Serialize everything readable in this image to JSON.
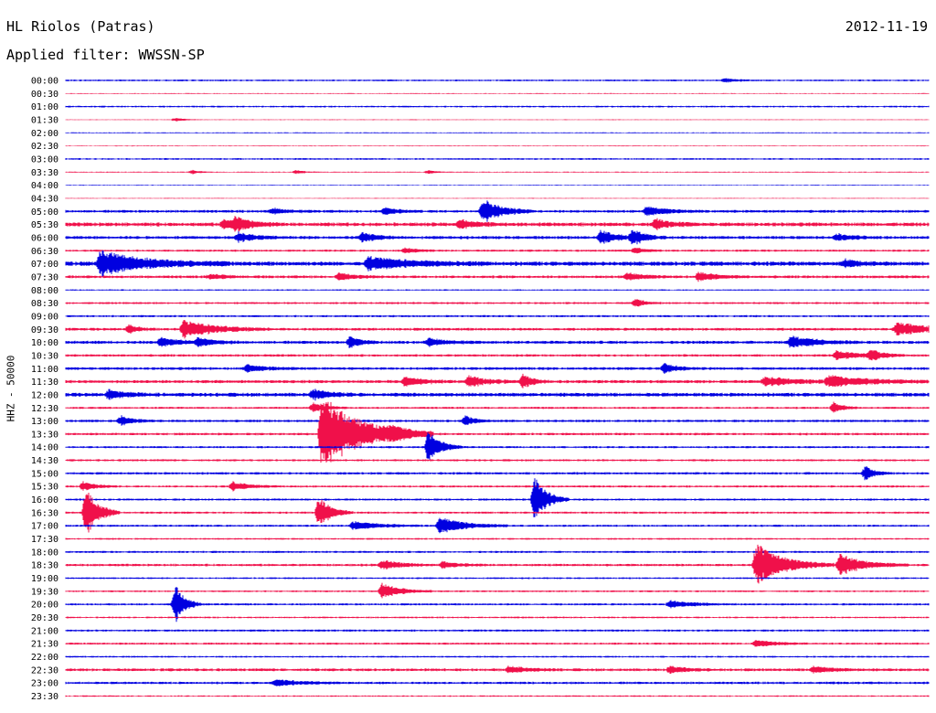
{
  "header": {
    "station": "HL Riolos (Patras)",
    "filter": "Applied filter: WWSSN-SP",
    "date": "2012-11-19"
  },
  "colors": {
    "blue": "#0000e0",
    "red": "#f0104a",
    "text": "#000000"
  },
  "chart_data": {
    "type": "line",
    "ylabel": "HHZ - 50000",
    "rows": [
      "00:00",
      "00:30",
      "01:00",
      "01:30",
      "02:00",
      "02:30",
      "03:00",
      "03:30",
      "04:00",
      "04:30",
      "05:00",
      "05:30",
      "06:00",
      "06:30",
      "07:00",
      "07:30",
      "08:00",
      "08:30",
      "09:00",
      "09:30",
      "10:00",
      "10:30",
      "11:00",
      "11:30",
      "12:00",
      "12:30",
      "13:00",
      "13:30",
      "14:00",
      "14:30",
      "15:00",
      "15:30",
      "16:00",
      "16:30",
      "17:00",
      "17:30",
      "18:00",
      "18:30",
      "19:00",
      "19:30",
      "20:00",
      "20:30",
      "21:00",
      "21:30",
      "22:00",
      "22:30",
      "23:00",
      "23:30"
    ],
    "row_colors": [
      "blue",
      "red"
    ],
    "row_noise": [
      1,
      0.5,
      1,
      0.5,
      0.6,
      0.5,
      1,
      0.6,
      0.5,
      0.5,
      1.6,
      2.2,
      1.8,
      1.2,
      2.5,
      1.6,
      0.8,
      1.2,
      1.2,
      1.6,
      1.8,
      1.4,
      1.6,
      1.8,
      2.2,
      1.2,
      1.4,
      1.4,
      1.2,
      1.2,
      1.4,
      1.2,
      1.2,
      1.2,
      1.2,
      1,
      1.2,
      1.4,
      1,
      1,
      1.2,
      1,
      1.2,
      1.2,
      1,
      1.6,
      1.4,
      0.8
    ],
    "x_range_minutes": [
      0,
      30
    ],
    "events": [
      {
        "row": 0,
        "t": 22.9,
        "amp": 2,
        "dur": 0.4
      },
      {
        "row": 3,
        "t": 3.8,
        "amp": 2,
        "dur": 0.3
      },
      {
        "row": 7,
        "t": 4.4,
        "amp": 2,
        "dur": 0.3
      },
      {
        "row": 7,
        "t": 8.0,
        "amp": 2,
        "dur": 0.3
      },
      {
        "row": 7,
        "t": 12.6,
        "amp": 2,
        "dur": 0.3
      },
      {
        "row": 10,
        "t": 7.2,
        "amp": 3,
        "dur": 0.5
      },
      {
        "row": 10,
        "t": 11.1,
        "amp": 4,
        "dur": 0.4
      },
      {
        "row": 10,
        "t": 14.5,
        "amp": 14,
        "dur": 0.6
      },
      {
        "row": 10,
        "t": 20.2,
        "amp": 5,
        "dur": 0.7
      },
      {
        "row": 11,
        "t": 5.5,
        "amp": 5,
        "dur": 0.5
      },
      {
        "row": 11,
        "t": 5.9,
        "amp": 7,
        "dur": 0.5
      },
      {
        "row": 11,
        "t": 13.7,
        "amp": 5,
        "dur": 0.5
      },
      {
        "row": 11,
        "t": 20.5,
        "amp": 6,
        "dur": 0.5
      },
      {
        "row": 12,
        "t": 6.0,
        "amp": 6,
        "dur": 0.5
      },
      {
        "row": 12,
        "t": 10.3,
        "amp": 5,
        "dur": 0.5
      },
      {
        "row": 12,
        "t": 18.6,
        "amp": 8,
        "dur": 0.5
      },
      {
        "row": 12,
        "t": 19.7,
        "amp": 9,
        "dur": 0.4
      },
      {
        "row": 12,
        "t": 26.8,
        "amp": 4,
        "dur": 0.5
      },
      {
        "row": 13,
        "t": 11.8,
        "amp": 3,
        "dur": 0.4
      },
      {
        "row": 13,
        "t": 19.8,
        "amp": 4,
        "dur": 0.3
      },
      {
        "row": 14,
        "t": 1.2,
        "amp": 14,
        "dur": 1.5
      },
      {
        "row": 14,
        "t": 10.5,
        "amp": 7,
        "dur": 1.4
      },
      {
        "row": 14,
        "t": 27.1,
        "amp": 4,
        "dur": 0.5
      },
      {
        "row": 15,
        "t": 5.0,
        "amp": 3,
        "dur": 0.5
      },
      {
        "row": 15,
        "t": 9.5,
        "amp": 4,
        "dur": 0.5
      },
      {
        "row": 15,
        "t": 19.5,
        "amp": 4,
        "dur": 0.6
      },
      {
        "row": 15,
        "t": 22.0,
        "amp": 5,
        "dur": 0.6
      },
      {
        "row": 17,
        "t": 19.8,
        "amp": 5,
        "dur": 0.3
      },
      {
        "row": 19,
        "t": 2.2,
        "amp": 5,
        "dur": 0.3
      },
      {
        "row": 19,
        "t": 4.1,
        "amp": 10,
        "dur": 1.0
      },
      {
        "row": 19,
        "t": 28.9,
        "amp": 7,
        "dur": 1.2
      },
      {
        "row": 20,
        "t": 3.3,
        "amp": 5,
        "dur": 0.6
      },
      {
        "row": 20,
        "t": 4.6,
        "amp": 5,
        "dur": 0.5
      },
      {
        "row": 20,
        "t": 9.9,
        "amp": 8,
        "dur": 0.3
      },
      {
        "row": 20,
        "t": 12.6,
        "amp": 4,
        "dur": 0.6
      },
      {
        "row": 20,
        "t": 25.2,
        "amp": 7,
        "dur": 0.8
      },
      {
        "row": 21,
        "t": 26.8,
        "amp": 5,
        "dur": 0.8
      },
      {
        "row": 21,
        "t": 28.0,
        "amp": 6,
        "dur": 0.4
      },
      {
        "row": 22,
        "t": 6.3,
        "amp": 4,
        "dur": 0.6
      },
      {
        "row": 22,
        "t": 20.8,
        "amp": 6,
        "dur": 0.4
      },
      {
        "row": 23,
        "t": 11.8,
        "amp": 5,
        "dur": 0.6
      },
      {
        "row": 23,
        "t": 14.0,
        "amp": 6,
        "dur": 0.6
      },
      {
        "row": 23,
        "t": 15.9,
        "amp": 9,
        "dur": 0.3
      },
      {
        "row": 23,
        "t": 24.3,
        "amp": 5,
        "dur": 1.0
      },
      {
        "row": 23,
        "t": 26.5,
        "amp": 6,
        "dur": 1.4
      },
      {
        "row": 24,
        "t": 1.5,
        "amp": 5,
        "dur": 0.6
      },
      {
        "row": 24,
        "t": 8.6,
        "amp": 6,
        "dur": 0.5
      },
      {
        "row": 25,
        "t": 8.6,
        "amp": 6,
        "dur": 0.4
      },
      {
        "row": 25,
        "t": 26.7,
        "amp": 7,
        "dur": 0.3
      },
      {
        "row": 26,
        "t": 1.9,
        "amp": 6,
        "dur": 0.4
      },
      {
        "row": 26,
        "t": 13.9,
        "amp": 6,
        "dur": 0.3
      },
      {
        "row": 27,
        "t": 8.9,
        "amp": 44,
        "dur": 1.3
      },
      {
        "row": 27,
        "t": 11.3,
        "amp": 5,
        "dur": 0.4
      },
      {
        "row": 28,
        "t": 12.6,
        "amp": 19,
        "dur": 0.4
      },
      {
        "row": 30,
        "t": 27.8,
        "amp": 8,
        "dur": 0.3
      },
      {
        "row": 31,
        "t": 0.6,
        "amp": 5,
        "dur": 0.4
      },
      {
        "row": 31,
        "t": 5.8,
        "amp": 5,
        "dur": 0.6
      },
      {
        "row": 32,
        "t": 16.3,
        "amp": 26,
        "dur": 0.4
      },
      {
        "row": 33,
        "t": 0.7,
        "amp": 28,
        "dur": 0.4
      },
      {
        "row": 33,
        "t": 8.8,
        "amp": 18,
        "dur": 0.4
      },
      {
        "row": 34,
        "t": 10.0,
        "amp": 5,
        "dur": 0.8
      },
      {
        "row": 34,
        "t": 13.0,
        "amp": 10,
        "dur": 0.8
      },
      {
        "row": 37,
        "t": 11.0,
        "amp": 6,
        "dur": 0.6
      },
      {
        "row": 37,
        "t": 13.1,
        "amp": 4,
        "dur": 0.5
      },
      {
        "row": 37,
        "t": 24.0,
        "amp": 24,
        "dur": 0.9
      },
      {
        "row": 37,
        "t": 26.9,
        "amp": 12,
        "dur": 0.8
      },
      {
        "row": 39,
        "t": 11.0,
        "amp": 9,
        "dur": 0.6
      },
      {
        "row": 40,
        "t": 3.8,
        "amp": 24,
        "dur": 0.3
      },
      {
        "row": 40,
        "t": 21.0,
        "amp": 4,
        "dur": 0.8
      },
      {
        "row": 43,
        "t": 24.0,
        "amp": 4,
        "dur": 0.6
      },
      {
        "row": 45,
        "t": 15.4,
        "amp": 4,
        "dur": 0.6
      },
      {
        "row": 45,
        "t": 21.0,
        "amp": 4,
        "dur": 0.6
      },
      {
        "row": 45,
        "t": 26.0,
        "amp": 4,
        "dur": 0.6
      },
      {
        "row": 46,
        "t": 7.3,
        "amp": 4,
        "dur": 0.8
      }
    ]
  }
}
